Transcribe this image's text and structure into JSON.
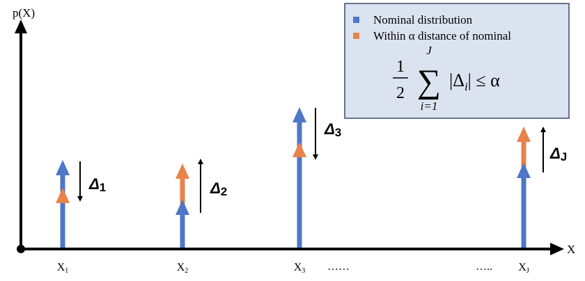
{
  "axes": {
    "y_label": "p(X)",
    "x_label": "X"
  },
  "legend": {
    "items": [
      "Nominal distribution",
      "Within α distance of nominal"
    ],
    "formula": {
      "numerator": "1",
      "denominator": "2",
      "sum": "∑",
      "sum_upper": "J",
      "sum_lower": "i=1",
      "body": "|Δ",
      "body_sub": "i",
      "relation": "| ≤ α"
    }
  },
  "points": [
    {
      "label": "X",
      "sub": "1",
      "delta": "Δ",
      "delta_sub": "1"
    },
    {
      "label": "X",
      "sub": "2",
      "delta": "Δ",
      "delta_sub": "2"
    },
    {
      "label": "X",
      "sub": "3",
      "delta": "Δ",
      "delta_sub": "3"
    },
    {
      "label": "X",
      "sub": "J",
      "delta": "Δ",
      "delta_sub": "J"
    }
  ],
  "ellipses": [
    "……",
    "….."
  ]
}
